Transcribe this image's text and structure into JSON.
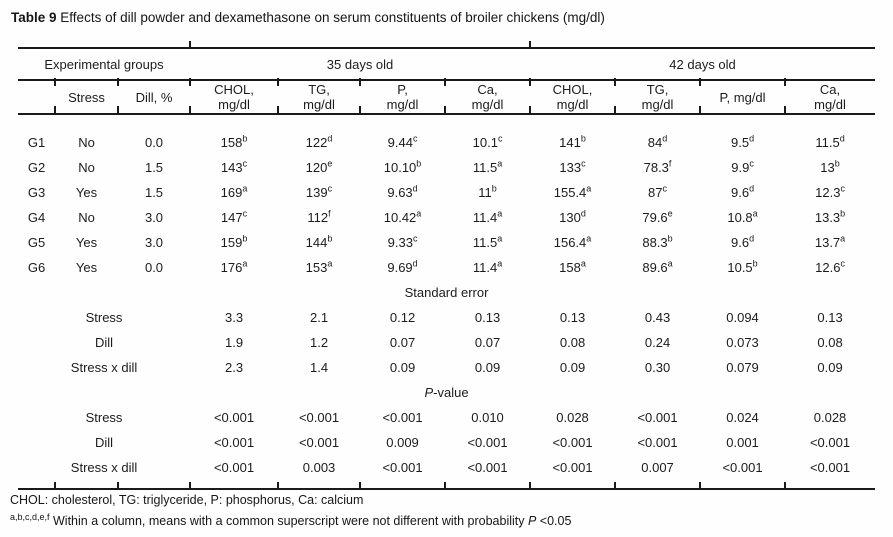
{
  "title": {
    "bold": "Table 9",
    "rest": "Effects of dill powder and dexamethasone on serum constituents of broiler chickens (mg/dl)"
  },
  "table": {
    "top_header": {
      "left": "Experimental groups",
      "age35": "35 days old",
      "age42": "42 days old"
    },
    "col_headers": [
      {
        "lines": [
          "Stress"
        ]
      },
      {
        "lines": [
          "Dill, %"
        ]
      },
      {
        "lines": [
          "CHOL,",
          "mg/dl"
        ]
      },
      {
        "lines": [
          "TG,",
          "mg/dl"
        ]
      },
      {
        "lines": [
          "P,",
          "mg/dl"
        ]
      },
      {
        "lines": [
          "Ca,",
          "mg/dl"
        ]
      },
      {
        "lines": [
          "CHOL,",
          "mg/dl"
        ]
      },
      {
        "lines": [
          "TG,",
          "mg/dl"
        ]
      },
      {
        "lines": [
          "P, mg/dl"
        ]
      },
      {
        "lines": [
          "Ca,",
          "mg/dl"
        ]
      }
    ],
    "groups": [
      {
        "id": "G1",
        "stress": "No",
        "dill": "0.0",
        "values": [
          {
            "v": "158",
            "s": "b"
          },
          {
            "v": "122",
            "s": "d"
          },
          {
            "v": "9.44",
            "s": "c"
          },
          {
            "v": "10.1",
            "s": "c"
          },
          {
            "v": "141",
            "s": "b"
          },
          {
            "v": "84",
            "s": "d"
          },
          {
            "v": "9.5",
            "s": "d"
          },
          {
            "v": "11.5",
            "s": "d"
          }
        ]
      },
      {
        "id": "G2",
        "stress": "No",
        "dill": "1.5",
        "values": [
          {
            "v": "143",
            "s": "c"
          },
          {
            "v": "120",
            "s": "e"
          },
          {
            "v": "10.10",
            "s": "b"
          },
          {
            "v": "11.5",
            "s": "a"
          },
          {
            "v": "133",
            "s": "c"
          },
          {
            "v": "78.3",
            "s": "f"
          },
          {
            "v": "9.9",
            "s": "c"
          },
          {
            "v": "13",
            "s": "b"
          }
        ]
      },
      {
        "id": "G3",
        "stress": "Yes",
        "dill": "1.5",
        "values": [
          {
            "v": "169",
            "s": "a"
          },
          {
            "v": "139",
            "s": "c"
          },
          {
            "v": "9.63",
            "s": "d"
          },
          {
            "v": "11",
            "s": "b"
          },
          {
            "v": "155.4",
            "s": "a"
          },
          {
            "v": "87",
            "s": "c"
          },
          {
            "v": "9.6",
            "s": "d"
          },
          {
            "v": "12.3",
            "s": "c"
          }
        ]
      },
      {
        "id": "G4",
        "stress": "No",
        "dill": "3.0",
        "values": [
          {
            "v": "147",
            "s": "c"
          },
          {
            "v": "112",
            "s": "f"
          },
          {
            "v": "10.42",
            "s": "a"
          },
          {
            "v": "11.4",
            "s": "a"
          },
          {
            "v": "130",
            "s": "d"
          },
          {
            "v": "79.6",
            "s": "e"
          },
          {
            "v": "10.8",
            "s": "a"
          },
          {
            "v": "13.3",
            "s": "b"
          }
        ]
      },
      {
        "id": "G5",
        "stress": "Yes",
        "dill": "3.0",
        "values": [
          {
            "v": "159",
            "s": "b"
          },
          {
            "v": "144",
            "s": "b"
          },
          {
            "v": "9.33",
            "s": "c"
          },
          {
            "v": "11.5",
            "s": "a"
          },
          {
            "v": "156.4",
            "s": "a"
          },
          {
            "v": "88.3",
            "s": "b"
          },
          {
            "v": "9.6",
            "s": "d"
          },
          {
            "v": "13.7",
            "s": "a"
          }
        ]
      },
      {
        "id": "G6",
        "stress": "Yes",
        "dill": "0.0",
        "values": [
          {
            "v": "176",
            "s": "a"
          },
          {
            "v": "153",
            "s": "a"
          },
          {
            "v": "9.69",
            "s": "d"
          },
          {
            "v": "11.4",
            "s": "a"
          },
          {
            "v": "158",
            "s": "a"
          },
          {
            "v": "89.6",
            "s": "a"
          },
          {
            "v": "10.5",
            "s": "b"
          },
          {
            "v": "12.6",
            "s": "c"
          }
        ]
      }
    ],
    "sections": [
      {
        "label": "Standard error",
        "rows": [
          {
            "label": "Stress",
            "values": [
              "3.3",
              "2.1",
              "0.12",
              "0.13",
              "0.13",
              "0.43",
              "0.094",
              "0.13"
            ]
          },
          {
            "label": "Dill",
            "values": [
              "1.9",
              "1.2",
              "0.07",
              "0.07",
              "0.08",
              "0.24",
              "0.073",
              "0.08"
            ]
          },
          {
            "label": "Stress x dill",
            "values": [
              "2.3",
              "1.4",
              "0.09",
              "0.09",
              "0.09",
              "0.30",
              "0.079",
              "0.09"
            ]
          }
        ]
      },
      {
        "label_italic": "P",
        "label": "-value",
        "rows": [
          {
            "label": "Stress",
            "values": [
              "<0.001",
              "<0.001",
              "<0.001",
              "0.010",
              "0.028",
              "<0.001",
              "0.024",
              "0.028"
            ]
          },
          {
            "label": "Dill",
            "values": [
              "<0.001",
              "<0.001",
              "0.009",
              "<0.001",
              "<0.001",
              "<0.001",
              "0.001",
              "<0.001"
            ]
          },
          {
            "label": "Stress x dill",
            "values": [
              "<0.001",
              "0.003",
              "<0.001",
              "<0.001",
              "<0.001",
              "0.007",
              "<0.001",
              "<0.001"
            ]
          }
        ]
      }
    ]
  },
  "footnotes": {
    "abbrev": "CHOL: cholesterol, TG: triglyceride, P: phosphorus, Ca: calcium",
    "sup": "a,b,c,d,e,f",
    "text": " Within a column, means with a common superscript were not different with probability ",
    "italic": "P",
    "tail": " <0.05"
  }
}
